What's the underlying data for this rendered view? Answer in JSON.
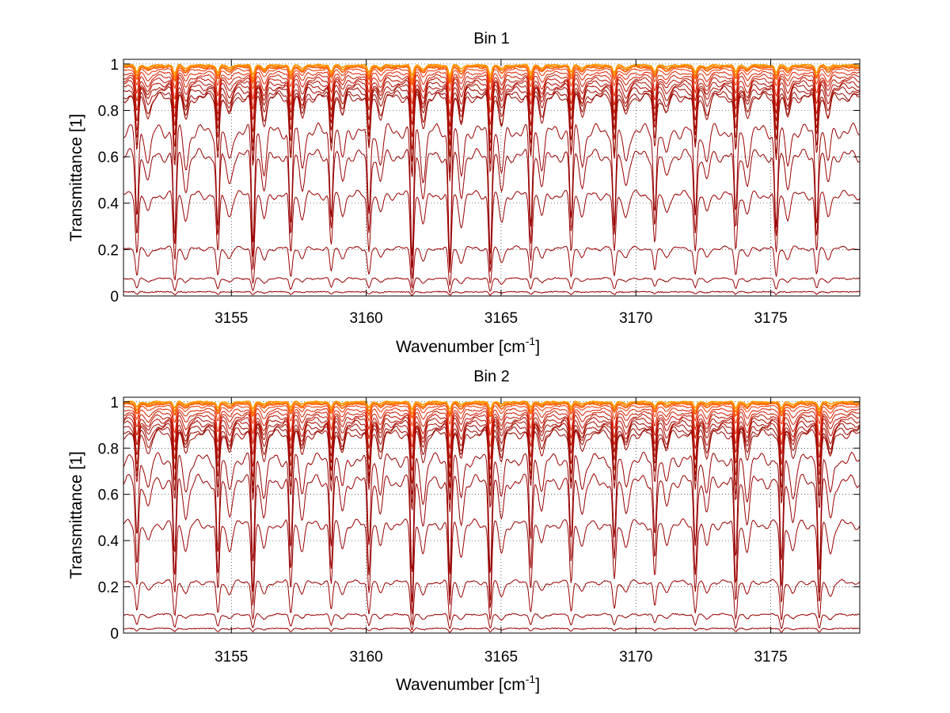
{
  "chart_data": [
    {
      "type": "line",
      "title": "Bin 1",
      "xlabel": "Wavenumber [cm",
      "xlabel_sup": "-1",
      "xlabel_suffix": "]",
      "ylabel": "Transmittance [1]",
      "xlim": [
        3151,
        3178.3
      ],
      "ylim": [
        0,
        1.02
      ],
      "xticks": [
        3155,
        3160,
        3165,
        3170,
        3175
      ],
      "xtick_labels": [
        "3155",
        "3160",
        "3165",
        "3170",
        "3175"
      ],
      "yticks": [
        0,
        0.2,
        0.4,
        0.6,
        0.8,
        1
      ],
      "ytick_labels": [
        "0",
        "0.2",
        "0.4",
        "0.6",
        "0.8",
        "1"
      ],
      "grid": "dotted",
      "line_center": [
        3151.5,
        3152.9,
        3154.5,
        3155.8,
        3157.2,
        3158.7,
        3160.1,
        3161.7,
        3163.1,
        3164.6,
        3166.1,
        3167.6,
        3169.2,
        3170.7,
        3172.2,
        3173.7,
        3175.2,
        3176.7
      ],
      "line_depth": [
        0.55,
        0.65,
        0.6,
        0.7,
        0.6,
        0.5,
        0.55,
        0.8,
        0.8,
        0.75,
        0.6,
        0.55,
        0.6,
        0.5,
        0.55,
        0.55,
        0.6,
        0.55
      ],
      "series": [
        {
          "baseline": 0.995,
          "color": "#ff9900"
        },
        {
          "baseline": 0.99,
          "color": "#ff7a00"
        },
        {
          "baseline": 0.985,
          "color": "#ff5a00"
        },
        {
          "baseline": 0.975,
          "color": "#ee3300"
        },
        {
          "baseline": 0.96,
          "color": "#dd2200"
        },
        {
          "baseline": 0.945,
          "color": "#cc1a00"
        },
        {
          "baseline": 0.93,
          "color": "#bb1100"
        },
        {
          "baseline": 0.915,
          "color": "#b00e00"
        },
        {
          "baseline": 0.9,
          "color": "#a80c00"
        },
        {
          "baseline": 0.885,
          "color": "#a00a00"
        },
        {
          "baseline": 0.865,
          "color": "#990800"
        },
        {
          "baseline": 0.855,
          "color": "#990800"
        },
        {
          "baseline": 0.71,
          "color": "#990000"
        },
        {
          "baseline": 0.605,
          "color": "#990000"
        },
        {
          "baseline": 0.435,
          "color": "#990000"
        },
        {
          "baseline": 0.205,
          "color": "#990000"
        },
        {
          "baseline": 0.075,
          "color": "#990000"
        },
        {
          "baseline": 0.018,
          "color": "#990000"
        }
      ]
    },
    {
      "type": "line",
      "title": "Bin 2",
      "xlabel": "Wavenumber [cm",
      "xlabel_sup": "-1",
      "xlabel_suffix": "]",
      "ylabel": "Transmittance [1]",
      "xlim": [
        3151,
        3178.3
      ],
      "ylim": [
        0,
        1.02
      ],
      "xticks": [
        3155,
        3160,
        3165,
        3170,
        3175
      ],
      "xtick_labels": [
        "3155",
        "3160",
        "3165",
        "3170",
        "3175"
      ],
      "yticks": [
        0,
        0.2,
        0.4,
        0.6,
        0.8,
        1
      ],
      "ytick_labels": [
        "0",
        "0.2",
        "0.4",
        "0.6",
        "0.8",
        "1"
      ],
      "grid": "dotted",
      "line_center": [
        3151.5,
        3152.9,
        3154.5,
        3155.8,
        3157.2,
        3158.7,
        3160.1,
        3161.7,
        3163.1,
        3164.6,
        3166.1,
        3167.6,
        3169.2,
        3170.7,
        3172.2,
        3173.7,
        3175.4,
        3176.8
      ],
      "line_depth": [
        0.55,
        0.65,
        0.65,
        0.7,
        0.6,
        0.55,
        0.6,
        0.8,
        0.75,
        0.75,
        0.55,
        0.55,
        0.55,
        0.5,
        0.6,
        0.7,
        0.75,
        0.75
      ],
      "series": [
        {
          "baseline": 1.0,
          "color": "#ff9900"
        },
        {
          "baseline": 0.995,
          "color": "#ff7a00"
        },
        {
          "baseline": 0.99,
          "color": "#ff5a00"
        },
        {
          "baseline": 0.98,
          "color": "#ee3300"
        },
        {
          "baseline": 0.965,
          "color": "#dd2200"
        },
        {
          "baseline": 0.95,
          "color": "#cc1a00"
        },
        {
          "baseline": 0.935,
          "color": "#bb1100"
        },
        {
          "baseline": 0.92,
          "color": "#b00e00"
        },
        {
          "baseline": 0.905,
          "color": "#a80c00"
        },
        {
          "baseline": 0.89,
          "color": "#a00a00"
        },
        {
          "baseline": 0.875,
          "color": "#990800"
        },
        {
          "baseline": 0.86,
          "color": "#990800"
        },
        {
          "baseline": 0.75,
          "color": "#990000"
        },
        {
          "baseline": 0.655,
          "color": "#990000"
        },
        {
          "baseline": 0.47,
          "color": "#990000"
        },
        {
          "baseline": 0.22,
          "color": "#990000"
        },
        {
          "baseline": 0.08,
          "color": "#990000"
        },
        {
          "baseline": 0.02,
          "color": "#990000"
        }
      ]
    }
  ]
}
